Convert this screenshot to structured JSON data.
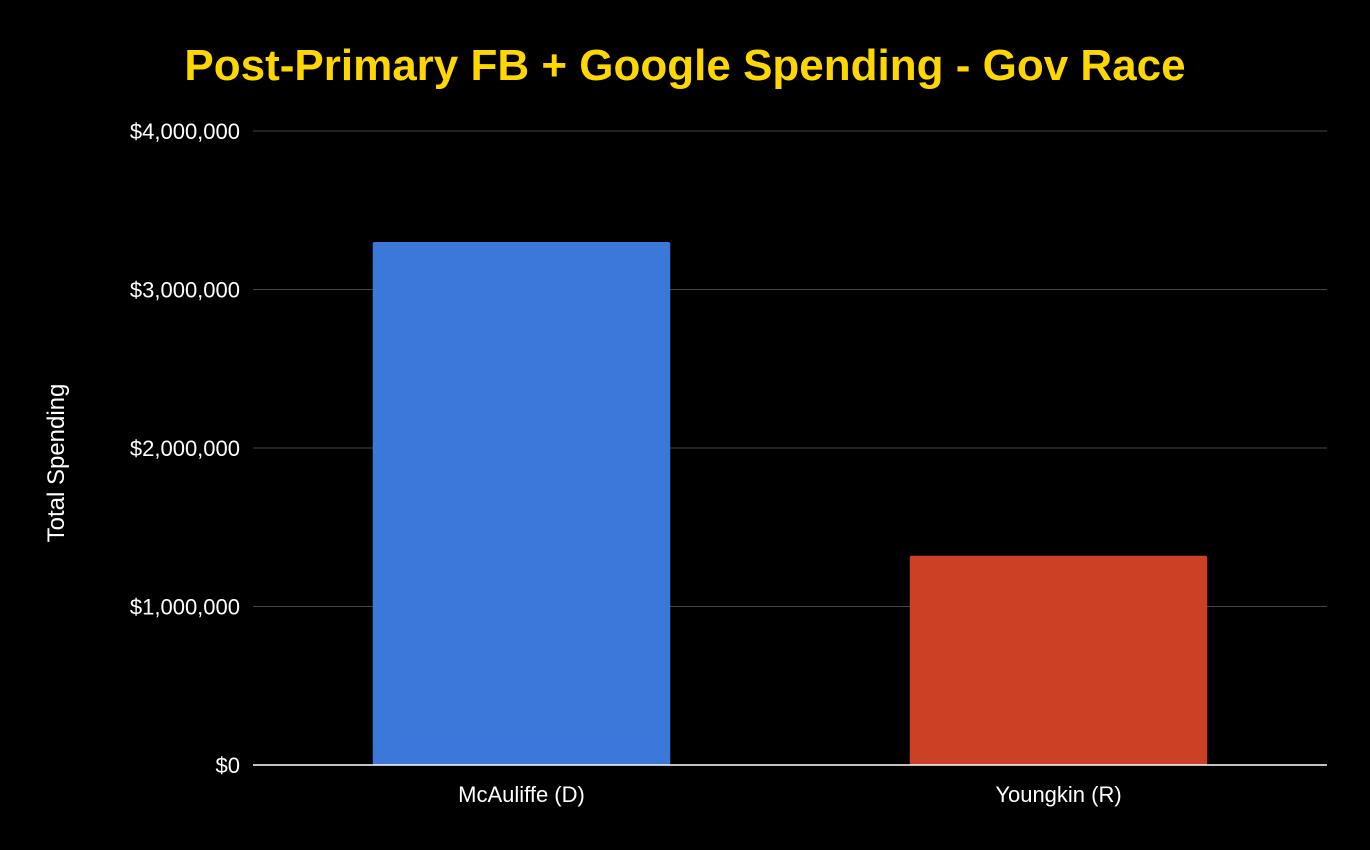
{
  "colors": {
    "background": "#000000",
    "title": "#FFD700",
    "text": "#FFFFFF",
    "grid": "#444444",
    "baseline": "#FFFFFF"
  },
  "chart_data": {
    "type": "bar",
    "title": "Post-Primary FB + Google Spending - Gov Race",
    "xlabel": "",
    "ylabel": "Total Spending",
    "categories": [
      "McAuliffe (D)",
      "Youngkin (R)"
    ],
    "values": [
      3300000,
      1320000
    ],
    "bar_colors": [
      "#3C78D8",
      "#CC4125"
    ],
    "ylim": [
      0,
      4000000
    ],
    "yticks": [
      0,
      1000000,
      2000000,
      3000000,
      4000000
    ],
    "ytick_labels": [
      "$0",
      "$1,000,000",
      "$2,000,000",
      "$3,000,000",
      "$4,000,000"
    ],
    "grid": true,
    "legend": "none"
  }
}
